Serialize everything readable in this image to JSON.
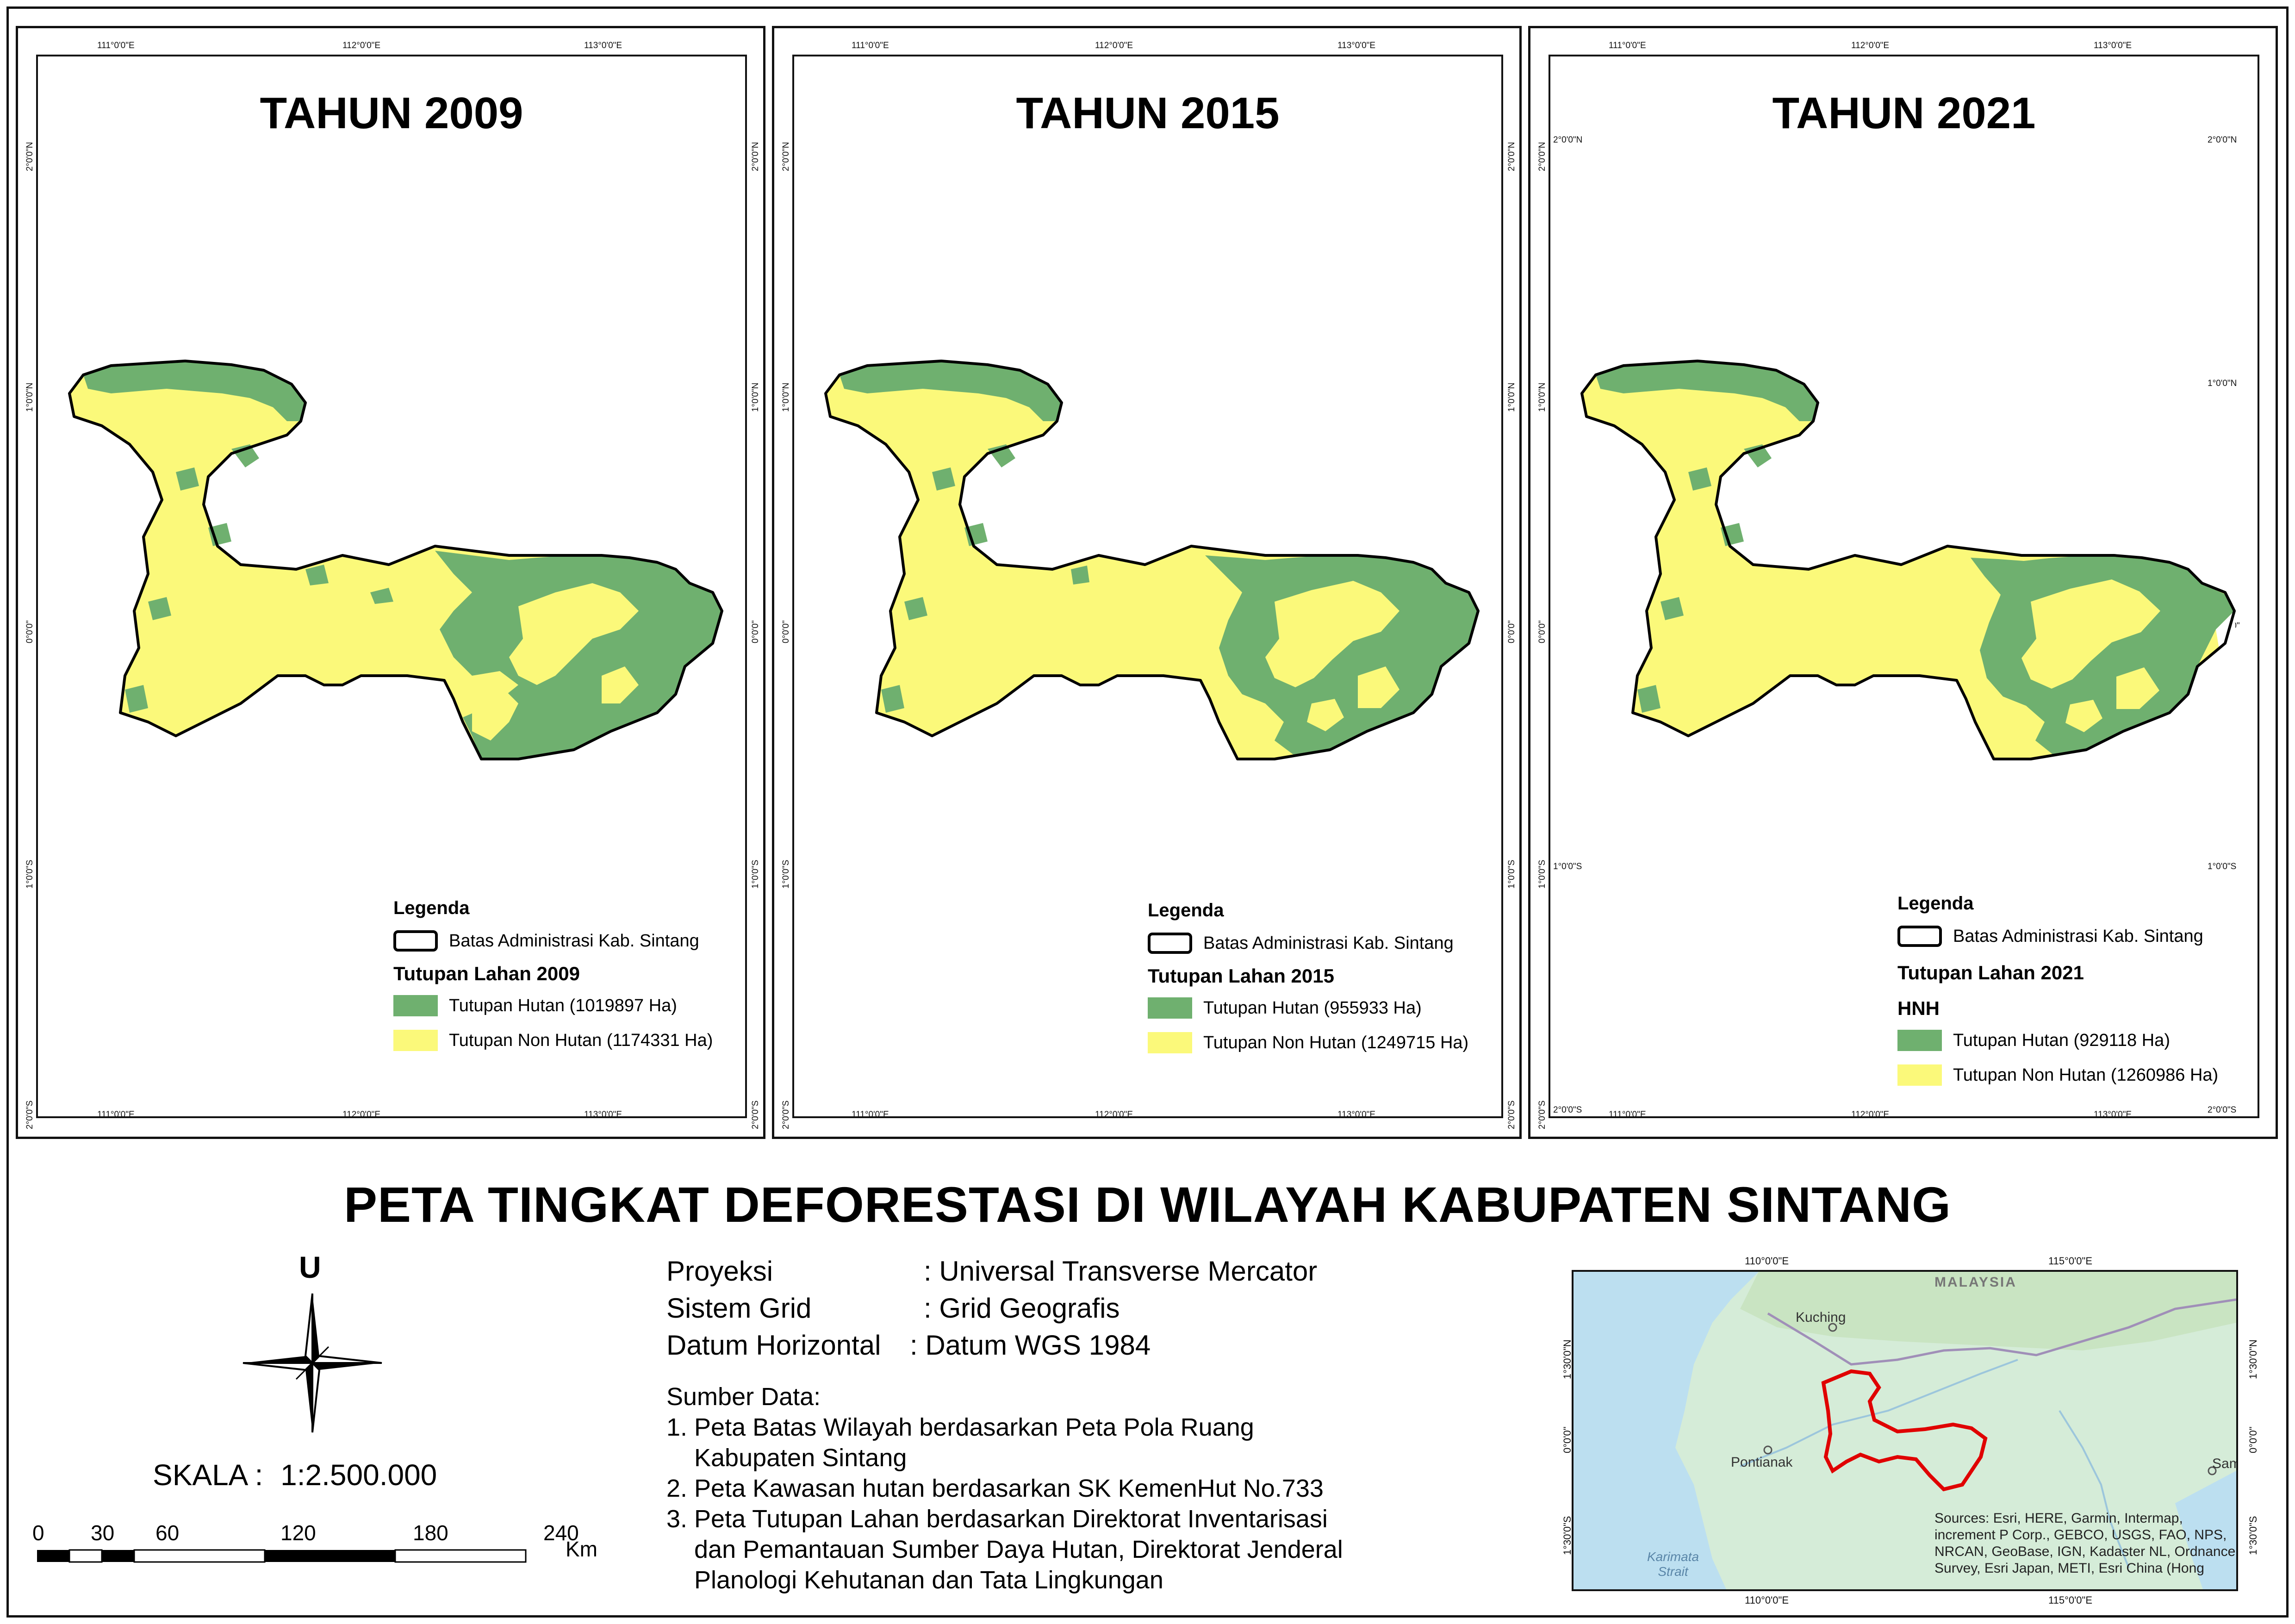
{
  "main_title": "PETA TINGKAT DEFORESTASI DI WILAYAH KABUPATEN SINTANG",
  "colors": {
    "forest": "#6fb06f",
    "nonforest": "#fbf97a",
    "boundary": "#000000",
    "inset_boundary": "#e00000"
  },
  "panels": [
    {
      "title": "TAHUN 2009",
      "top_ticks": [
        "111°0'0\"E",
        "112°0'0\"E",
        "113°0'0\"E"
      ],
      "left_ticks": [
        "2°0'0\"N",
        "1°0'0\"N",
        "0°0'0\"",
        "1°0'0\"S",
        "2°0'0\"S"
      ],
      "legend": {
        "title": "Legenda",
        "boundary_label": "Batas Administrasi Kab. Sintang",
        "subtitle": "Tutupan Lahan 2009",
        "forest_label": "Tutupan Hutan (1019897 Ha)",
        "nonforest_label": "Tutupan Non Hutan (1174331 Ha)"
      }
    },
    {
      "title": "TAHUN 2015",
      "top_ticks": [
        "111°0'0\"E",
        "112°0'0\"E",
        "113°0'0\"E"
      ],
      "left_ticks": [
        "2°0'0\"N",
        "1°0'0\"N",
        "0°0'0\"",
        "1°0'0\"S",
        "2°0'0\"S"
      ],
      "legend": {
        "title": "Legenda",
        "boundary_label": "Batas Administrasi Kab. Sintang",
        "subtitle": "Tutupan Lahan 2015",
        "forest_label": "Tutupan Hutan (955933 Ha)",
        "nonforest_label": "Tutupan Non Hutan (1249715 Ha)"
      }
    },
    {
      "title": "TAHUN 2021",
      "top_ticks": [
        "111°0'0\"E",
        "112°0'0\"E",
        "113°0'0\"E"
      ],
      "left_ticks": [
        "2°0'0\"N",
        "1°0'0\"N",
        "0°0'0\"",
        "1°0'0\"S",
        "2°0'0\"S"
      ],
      "legend": {
        "title": "Legenda",
        "boundary_label": "Batas Administrasi Kab. Sintang",
        "subtitle": "Tutupan Lahan 2021",
        "subtitle2": "HNH",
        "forest_label": "Tutupan Hutan (929118 Ha)",
        "nonforest_label": "Tutupan Non Hutan (1260986 Ha)"
      }
    }
  ],
  "north_label": "U",
  "scale": {
    "text": "SKALA :",
    "value": "1:2.500.000",
    "ticks": [
      "0",
      "30",
      "60",
      "120",
      "180",
      "240"
    ],
    "unit": "Km"
  },
  "info": {
    "rows": [
      {
        "key": "Proyeksi",
        "value": ": Universal Transverse Mercator"
      },
      {
        "key": "Sistem Grid",
        "value": ": Grid Geografis"
      },
      {
        "key": "Datum Horizontal",
        "value": ": Datum WGS 1984"
      }
    ],
    "sources_title": "Sumber Data:",
    "sources": [
      "1. Peta Batas Wilayah berdasarkan Peta Pola Ruang",
      "    Kabupaten Sintang",
      "2. Peta Kawasan hutan berdasarkan SK KemenHut No.733",
      "3. Peta Tutupan Lahan  berdasarkan Direktorat Inventarisasi",
      "    dan Pemantauan Sumber Daya Hutan, Direktorat Jenderal",
      "    Planologi Kehutanan dan Tata Lingkungan"
    ]
  },
  "inset": {
    "top_ticks": [
      "110°0'0\"E",
      "115°0'0\"E"
    ],
    "left_ticks": [
      "1°30'0\"N",
      "0°0'0\"",
      "1°30'0\"S"
    ],
    "places": [
      "Kuching",
      "Pontianak",
      "Sam",
      "MALAYSIA",
      "Karimata Strait"
    ],
    "credits": [
      "Sources: Esri, HERE, Garmin, Intermap,",
      "increment P Corp., GEBCO, USGS, FAO, NPS,",
      "NRCAN, GeoBase, IGN, Kadaster NL, Ordnance",
      "Survey, Esri Japan, METI, Esri China (Hong"
    ]
  }
}
